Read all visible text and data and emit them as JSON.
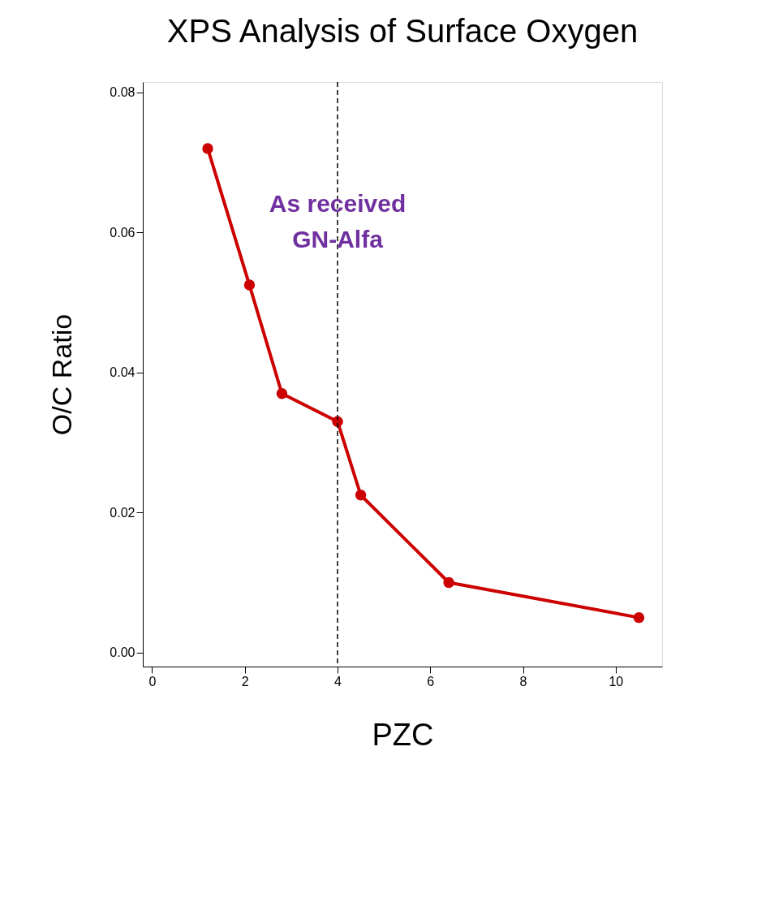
{
  "chart_data": {
    "type": "line",
    "title": "XPS Analysis of Surface Oxygen",
    "xlabel": "PZC",
    "ylabel": "O/C Ratio",
    "x": [
      1.2,
      2.1,
      2.8,
      4.0,
      4.5,
      6.4,
      10.5
    ],
    "series": [
      {
        "color": "#cc0000",
        "values": [
          0.072,
          0.0525,
          0.037,
          0.033,
          0.0225,
          0.01,
          0.005
        ]
      }
    ],
    "xlim": [
      -0.2,
      11
    ],
    "ylim": [
      -0.002,
      0.0815
    ],
    "xticks": [
      0,
      2,
      4,
      6,
      8,
      10
    ],
    "yticks": [
      {
        "value": 0,
        "label": "0.00"
      },
      {
        "value": 0.02,
        "label": "0.02"
      },
      {
        "value": 0.04,
        "label": "0.04"
      },
      {
        "value": 0.06,
        "label": "0.06"
      },
      {
        "value": 0.08,
        "label": "0.08"
      }
    ],
    "ref_lines": [
      {
        "axis": "x",
        "value": 4,
        "line_style": "dashed",
        "color": "#000000"
      }
    ],
    "annotations": [
      {
        "text": "As received\nGN-Alfa",
        "x": 4,
        "y": 0.064
      }
    ],
    "marker": "circle",
    "line_style": "solid",
    "grid": false
  }
}
